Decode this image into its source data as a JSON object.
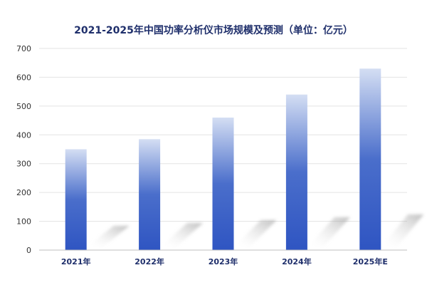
{
  "chart_data": {
    "type": "bar",
    "title": "2021-2025年中国功率分析仪市场规模及预测（单位：亿元）",
    "categories": [
      "2021年",
      "2022年",
      "2023年",
      "2024年",
      "2025年E"
    ],
    "values": [
      350,
      385,
      460,
      540,
      630
    ],
    "xlabel": "",
    "ylabel": "",
    "ylim": [
      0,
      700
    ],
    "yticks": [
      0,
      100,
      200,
      300,
      400,
      500,
      600,
      700
    ],
    "grid": true,
    "legend": "none",
    "colors": {
      "bar_top": "#d4def3",
      "bar_mid": "#4a6ecb",
      "bar_bottom": "#2f55c2",
      "grid": "#e3e3e3",
      "axis": "#bfbfbf",
      "title": "#1f2f6b"
    }
  }
}
